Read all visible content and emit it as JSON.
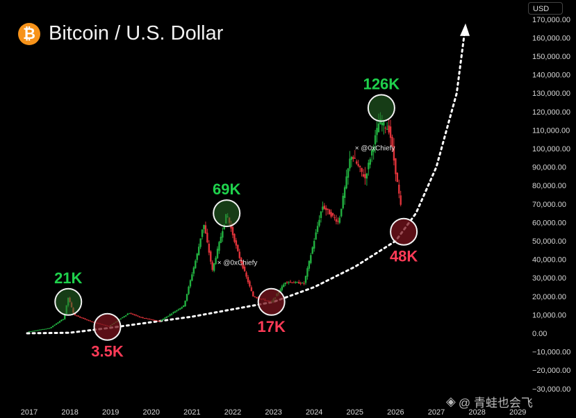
{
  "title": "Bitcoin / U.S. Dollar",
  "currency": "USD",
  "watermark": "@ 青蛙也会飞",
  "colors": {
    "up": "#22b040",
    "down": "#e0333a",
    "peak": "#1fd14c",
    "trough": "#ff3b57",
    "background": "#000000",
    "btc_orange": "#f7931a"
  },
  "chart_data": {
    "type": "candlestick",
    "title": "Bitcoin / U.S. Dollar",
    "y_axis": {
      "unit": "USD",
      "range": [
        -30000,
        170000
      ],
      "ticks": [
        "170,000.00",
        "160,000.00",
        "150,000.00",
        "140,000.00",
        "130,000.00",
        "120,000.00",
        "110,000.00",
        "100,000.00",
        "90,000.00",
        "80,000.00",
        "70,000.00",
        "60,000.00",
        "50,000.00",
        "40,000.00",
        "30,000.00",
        "20,000.00",
        "10,000.00",
        "0.00",
        "−10,000.00",
        "−20,000.00",
        "−30,000.00"
      ]
    },
    "x_axis": {
      "ticks": [
        "2017",
        "2018",
        "2019",
        "2020",
        "2021",
        "2022",
        "2023",
        "2024",
        "2025",
        "2026",
        "2027",
        "2028",
        "2029"
      ]
    },
    "series": [
      {
        "date": "2017.00",
        "price": 1000
      },
      {
        "date": "2017.50",
        "price": 2800
      },
      {
        "date": "2017.85",
        "price": 8000
      },
      {
        "date": "2017.96",
        "price": 19500
      },
      {
        "date": "2018.10",
        "price": 10000
      },
      {
        "date": "2018.50",
        "price": 6500
      },
      {
        "date": "2018.95",
        "price": 3700
      },
      {
        "date": "2019.45",
        "price": 11000
      },
      {
        "date": "2019.75",
        "price": 8500
      },
      {
        "date": "2020.20",
        "price": 6500
      },
      {
        "date": "2020.80",
        "price": 15000
      },
      {
        "date": "2021.15",
        "price": 45000
      },
      {
        "date": "2021.28",
        "price": 60000
      },
      {
        "date": "2021.50",
        "price": 34000
      },
      {
        "date": "2021.85",
        "price": 65000
      },
      {
        "date": "2022.15",
        "price": 42000
      },
      {
        "date": "2022.50",
        "price": 20000
      },
      {
        "date": "2022.95",
        "price": 16800
      },
      {
        "date": "2023.30",
        "price": 28000
      },
      {
        "date": "2023.75",
        "price": 27000
      },
      {
        "date": "2024.20",
        "price": 69000
      },
      {
        "date": "2024.60",
        "price": 60000
      },
      {
        "date": "2024.90",
        "price": 97000
      },
      {
        "date": "2025.25",
        "price": 84000
      },
      {
        "date": "2025.60",
        "price": 115000
      },
      {
        "date": "2025.85",
        "price": 110000
      },
      {
        "date": "2026.05",
        "price": 80000
      },
      {
        "date": "2026.15",
        "price": 65000
      }
    ],
    "annotations": [
      {
        "kind": "peak",
        "label": "21K",
        "date": "2017.96",
        "price": 17000
      },
      {
        "kind": "trough",
        "label": "3.5K",
        "date": "2018.92",
        "price": 3500
      },
      {
        "kind": "peak",
        "label": "69K",
        "date": "2021.85",
        "price": 65000
      },
      {
        "kind": "trough",
        "label": "17K",
        "date": "2022.95",
        "price": 17000
      },
      {
        "kind": "peak",
        "label": "126K",
        "date": "2025.65",
        "price": 122000
      },
      {
        "kind": "trough",
        "label": "48K",
        "date": "2026.20",
        "price": 55000
      }
    ],
    "inline_labels": [
      {
        "text": "@0xChiefy",
        "date": "2021.62",
        "price": 37000
      },
      {
        "text": "@0xChiefy",
        "date": "2025.00",
        "price": 99000
      }
    ],
    "trend_curve": {
      "style": "dotted",
      "color": "#ffffff",
      "arrow": true,
      "points": [
        {
          "date": "2016.95",
          "price": 0
        },
        {
          "date": "2018.00",
          "price": 300
        },
        {
          "date": "2019.00",
          "price": 3000
        },
        {
          "date": "2020.00",
          "price": 6000
        },
        {
          "date": "2021.00",
          "price": 9000
        },
        {
          "date": "2022.00",
          "price": 13000
        },
        {
          "date": "2023.00",
          "price": 17000
        },
        {
          "date": "2024.00",
          "price": 25000
        },
        {
          "date": "2025.00",
          "price": 36000
        },
        {
          "date": "2026.00",
          "price": 50000
        },
        {
          "date": "2026.50",
          "price": 65000
        },
        {
          "date": "2027.00",
          "price": 90000
        },
        {
          "date": "2027.50",
          "price": 130000
        },
        {
          "date": "2027.70",
          "price": 164000
        }
      ]
    }
  }
}
